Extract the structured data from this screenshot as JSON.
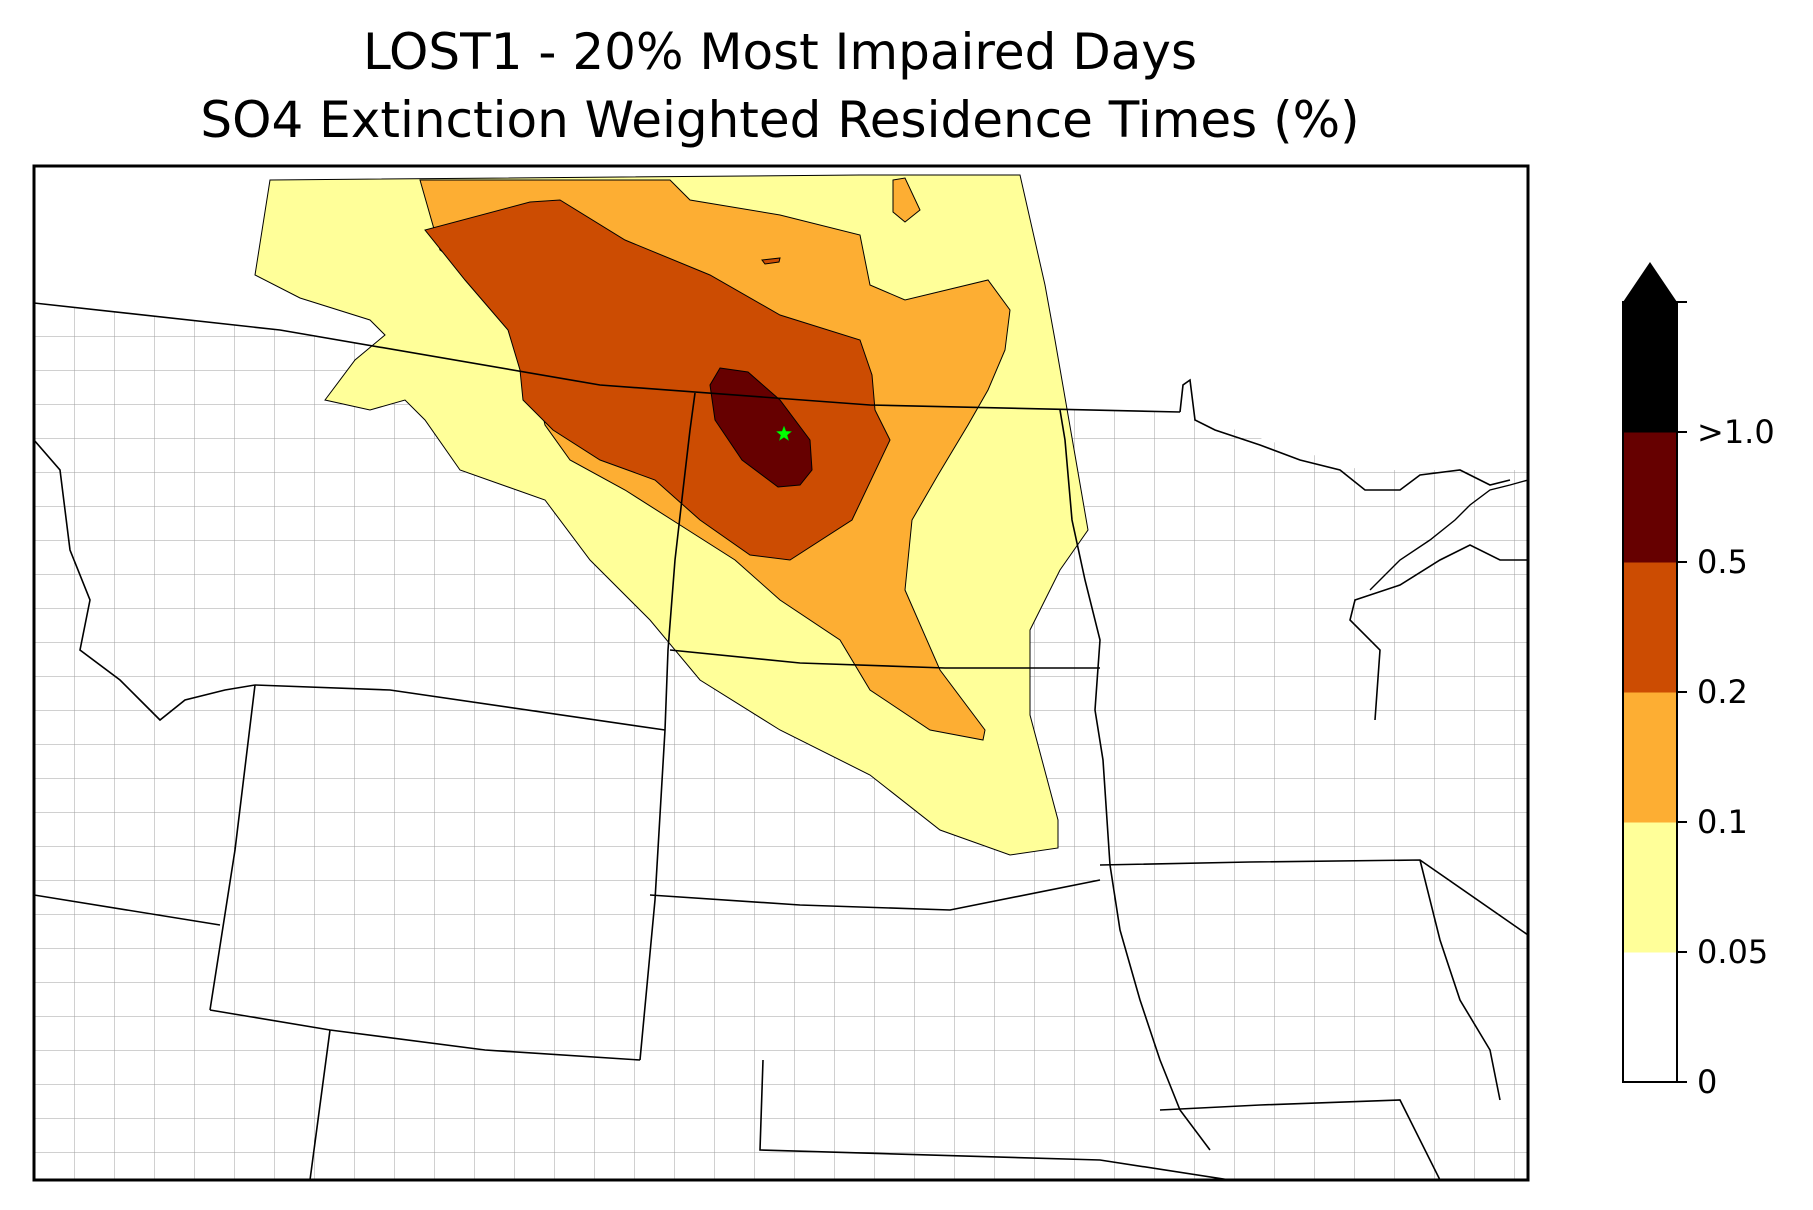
{
  "title": {
    "line1": "LOST1 - 20% Most Impaired Days",
    "line2": "SO4 Extinction Weighted Residence Times (%)"
  },
  "colorbar": {
    "levels": [
      {
        "label": "0",
        "color": "#ffffff"
      },
      {
        "label": "0.05",
        "color": "#ffff99"
      },
      {
        "label": "0.1",
        "color": "#fdae33"
      },
      {
        "label": "0.2",
        "color": "#cc4c02"
      },
      {
        "label": "0.5",
        "color": "#660000"
      },
      {
        "label": ">1.0",
        "color": "#000000"
      }
    ],
    "extend": "max",
    "extend_color": "#000000"
  },
  "site_marker": {
    "name": "LOST1",
    "shape": "star",
    "color": "#00ff00"
  },
  "colors": {
    "state_borders": "#000000",
    "county_borders": "#a0a0a0",
    "land": "#ffffff"
  }
}
